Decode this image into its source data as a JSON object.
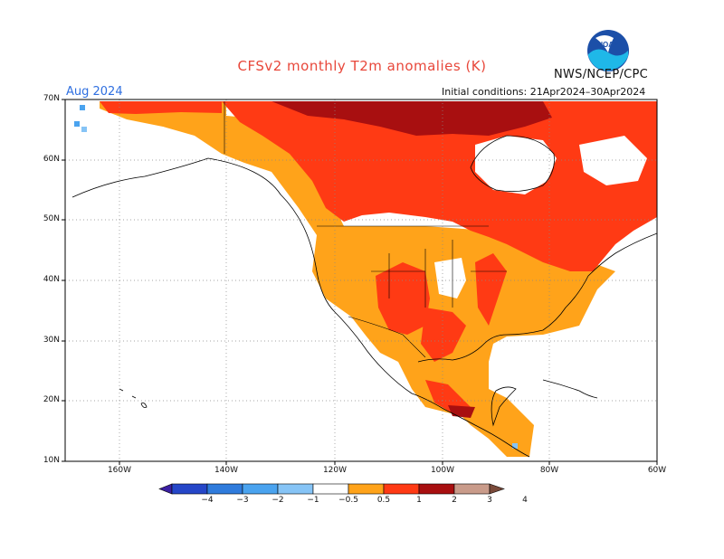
{
  "title": "CFSv2 monthly T2m anomalies (K)",
  "agency": "NWS/NCEP/CPC",
  "logo_text": "NOAA",
  "target_month": "Aug 2024",
  "initial_conditions": "Initial conditions: 21Apr2024–30Apr2024",
  "lat_labels": [
    "70N",
    "60N",
    "50N",
    "40N",
    "30N",
    "20N",
    "10N"
  ],
  "lon_labels": [
    "160W",
    "140W",
    "120W",
    "100W",
    "80W",
    "60W"
  ],
  "colorbar": {
    "ticks": [
      "−4",
      "−3",
      "−2",
      "−1",
      "−0.5",
      "0.5",
      "1",
      "2",
      "3",
      "4"
    ],
    "colors": [
      "#3b1fa3",
      "#2546c8",
      "#2f7bdc",
      "#4aa3ef",
      "#86c4f6",
      "#ffffff",
      "#ffa31a",
      "#ff3a14",
      "#a80f10",
      "#c99b8a",
      "#7a4a3a"
    ]
  },
  "colors": {
    "anom_0_5_to_1": "#ffa31a",
    "anom_1_to_2": "#ff3a14",
    "anom_2_to_3": "#a80f10",
    "anom_neg": "#4aa3ef"
  }
}
